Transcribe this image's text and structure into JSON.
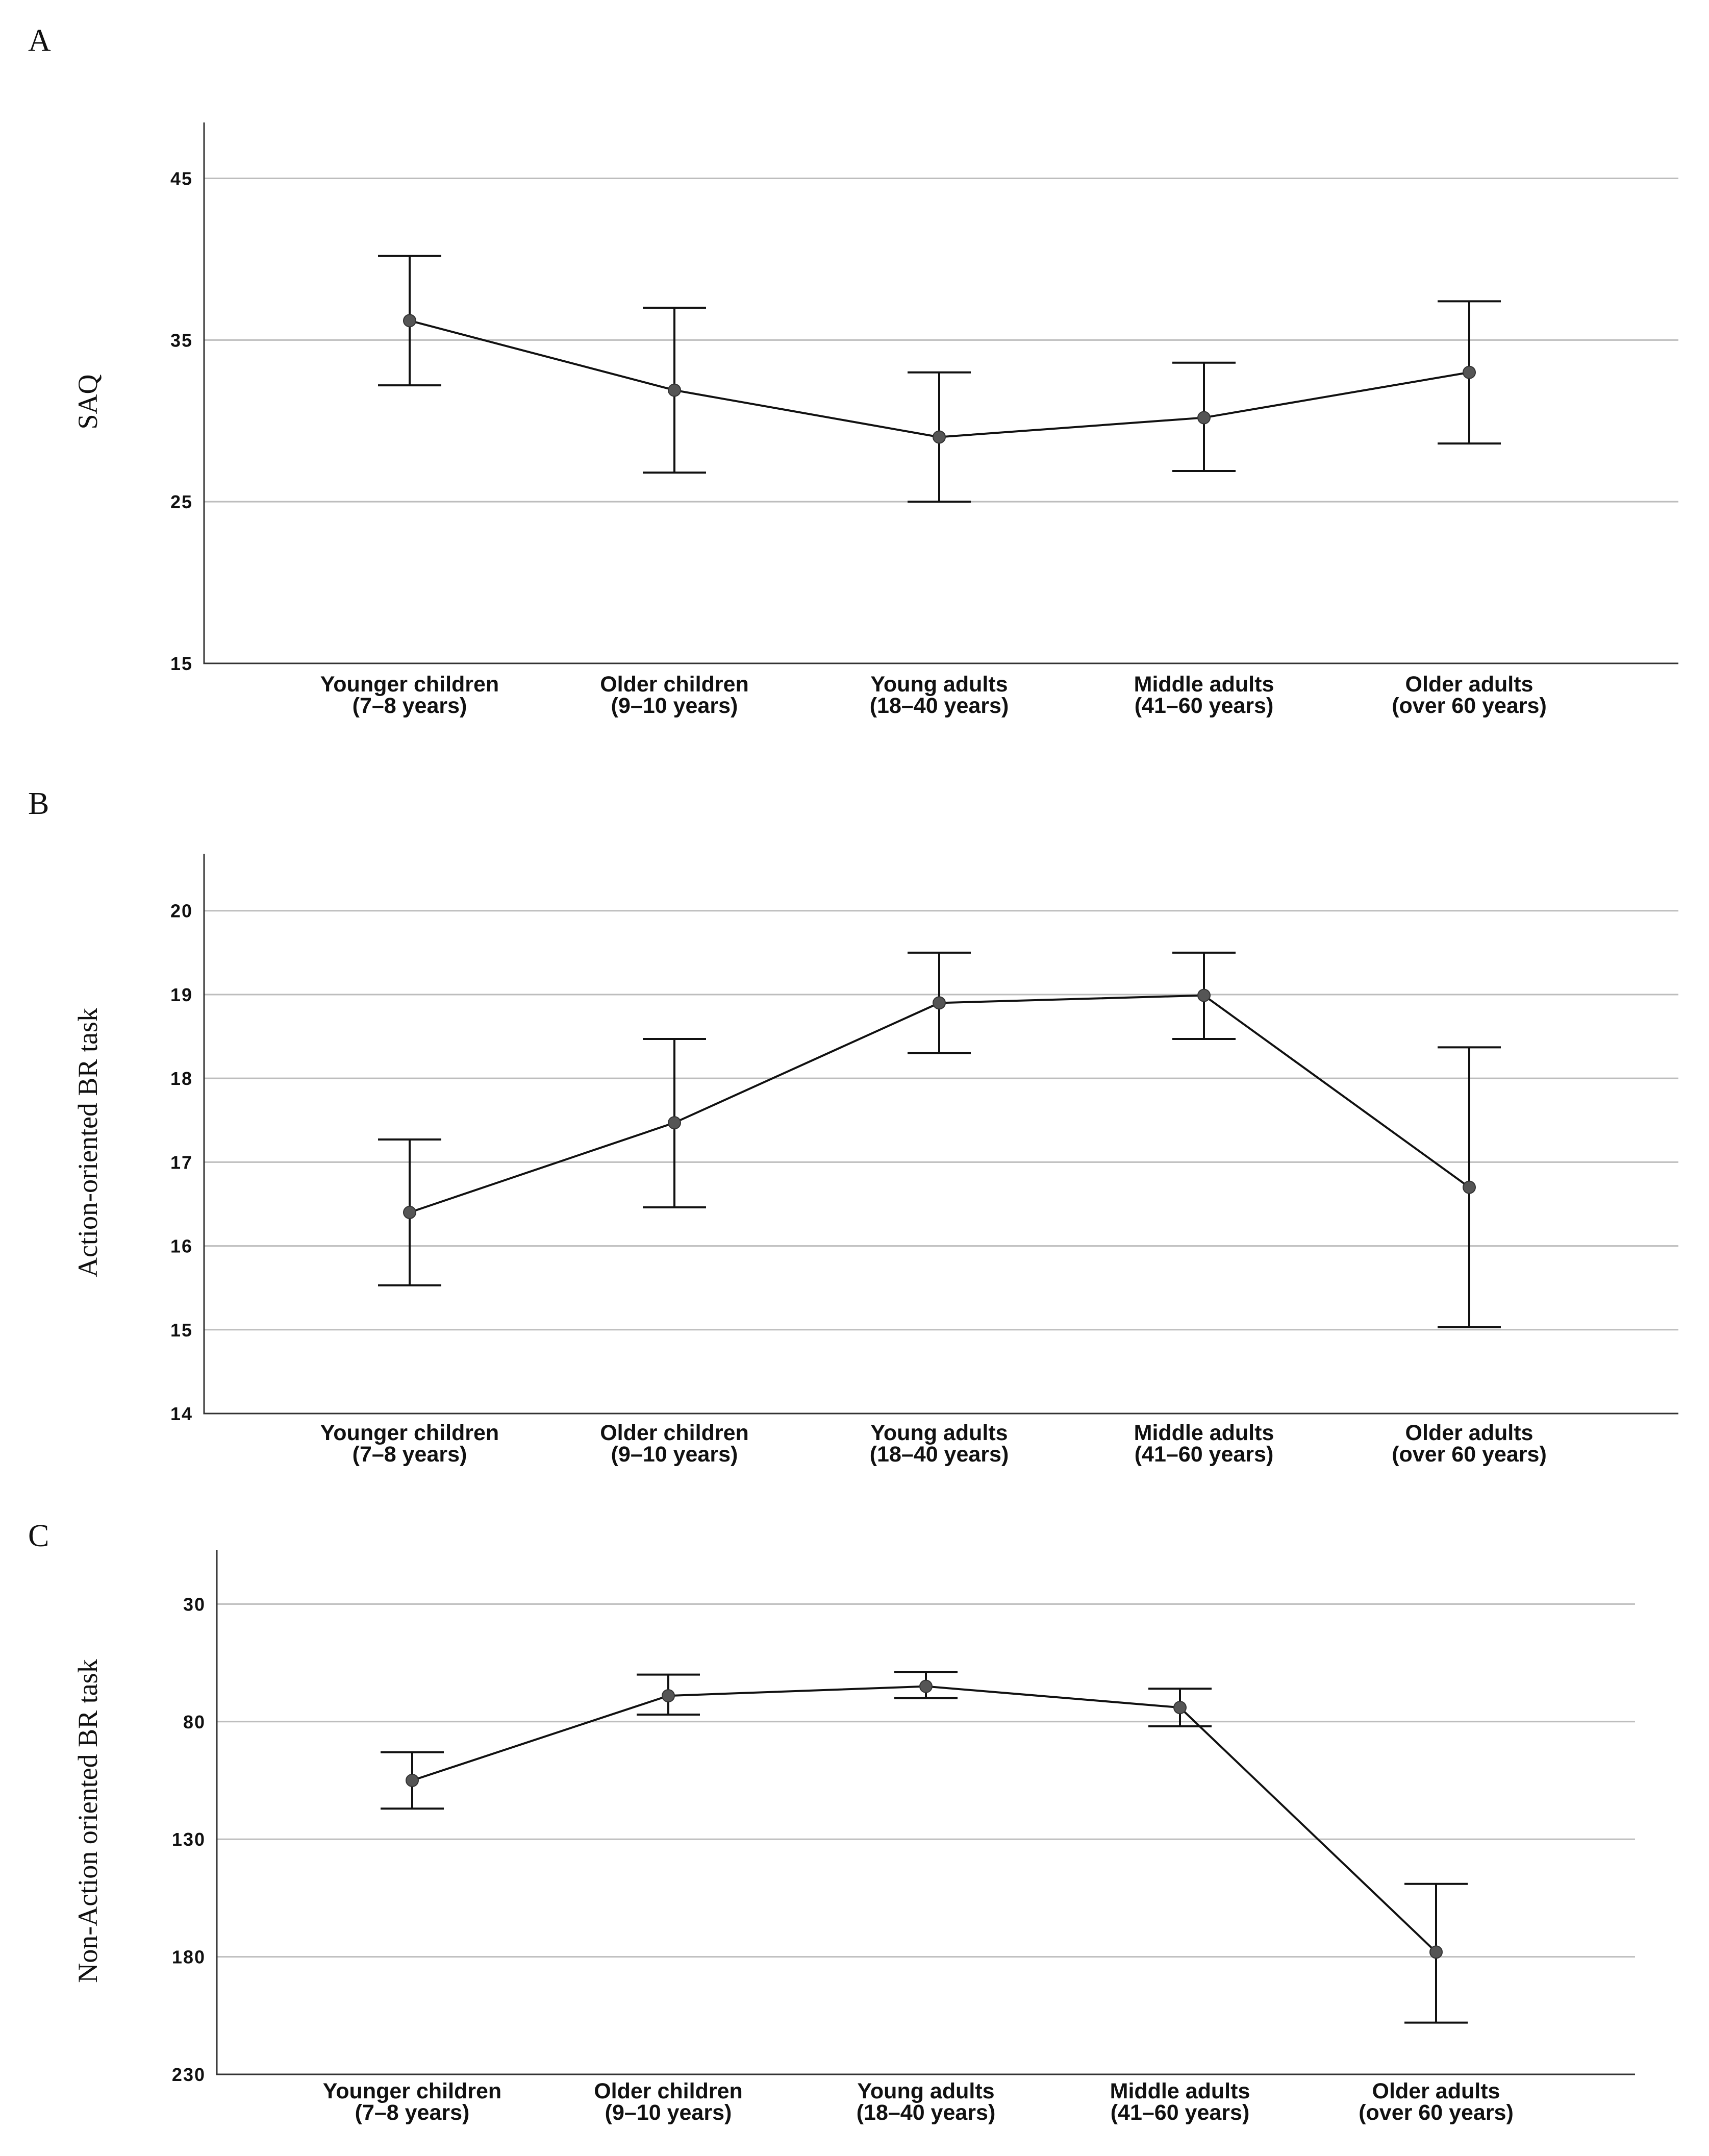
{
  "chart_data": [
    {
      "panel": "A",
      "type": "line",
      "ylabel": "SAQ",
      "ylim": [
        15,
        48.3
      ],
      "yticks": [
        15,
        25,
        35,
        45
      ],
      "reversed": false,
      "categories": [
        [
          "Younger children",
          "(7–8 years)"
        ],
        [
          "Older children",
          "(9–10 years)"
        ],
        [
          "Young adults",
          "(18–40 years)"
        ],
        [
          "Middle adults",
          "(41–60 years)"
        ],
        [
          "Older adults",
          "(over 60 years)"
        ]
      ],
      "means": [
        36.2,
        31.9,
        29.0,
        30.2,
        33.0
      ],
      "lower": [
        32.2,
        26.8,
        25.0,
        26.9,
        28.6
      ],
      "upper": [
        40.2,
        37.0,
        33.0,
        33.6,
        37.4
      ]
    },
    {
      "panel": "B",
      "type": "line",
      "ylabel": "Action-oriented BR task",
      "ylim": [
        14,
        20.65
      ],
      "yticks": [
        14,
        15,
        16,
        17,
        18,
        19,
        20
      ],
      "reversed": false,
      "categories": [
        [
          "Younger children",
          "(7–8 years)"
        ],
        [
          "Older children",
          "(9–10 years)"
        ],
        [
          "Young adults",
          "(18–40 years)"
        ],
        [
          "Middle adults",
          "(41–60 years)"
        ],
        [
          "Older adults",
          "(over 60 years)"
        ]
      ],
      "means": [
        16.4,
        17.47,
        18.9,
        18.99,
        16.7
      ],
      "lower": [
        15.53,
        16.46,
        18.3,
        18.47,
        15.03
      ],
      "upper": [
        17.27,
        18.47,
        19.5,
        19.5,
        18.37
      ]
    },
    {
      "panel": "C",
      "type": "line",
      "ylabel": "Non-Action oriented BR task",
      "ylim": [
        8,
        230
      ],
      "yticks": [
        30,
        80,
        130,
        180,
        230
      ],
      "reversed": true,
      "categories": [
        [
          "Younger children",
          "(7–8 years)"
        ],
        [
          "Older children",
          "(9–10 years)"
        ],
        [
          "Young adults",
          "(18–40 years)"
        ],
        [
          "Middle adults",
          "(41–60 years)"
        ],
        [
          "Older adults",
          "(over 60 years)"
        ]
      ],
      "means": [
        105.0,
        69.0,
        65.0,
        74.0,
        178.0
      ],
      "lower": [
        93.0,
        60.0,
        59.0,
        66.0,
        149.0
      ],
      "upper": [
        117.0,
        77.0,
        70.0,
        82.0,
        208.0
      ]
    }
  ]
}
